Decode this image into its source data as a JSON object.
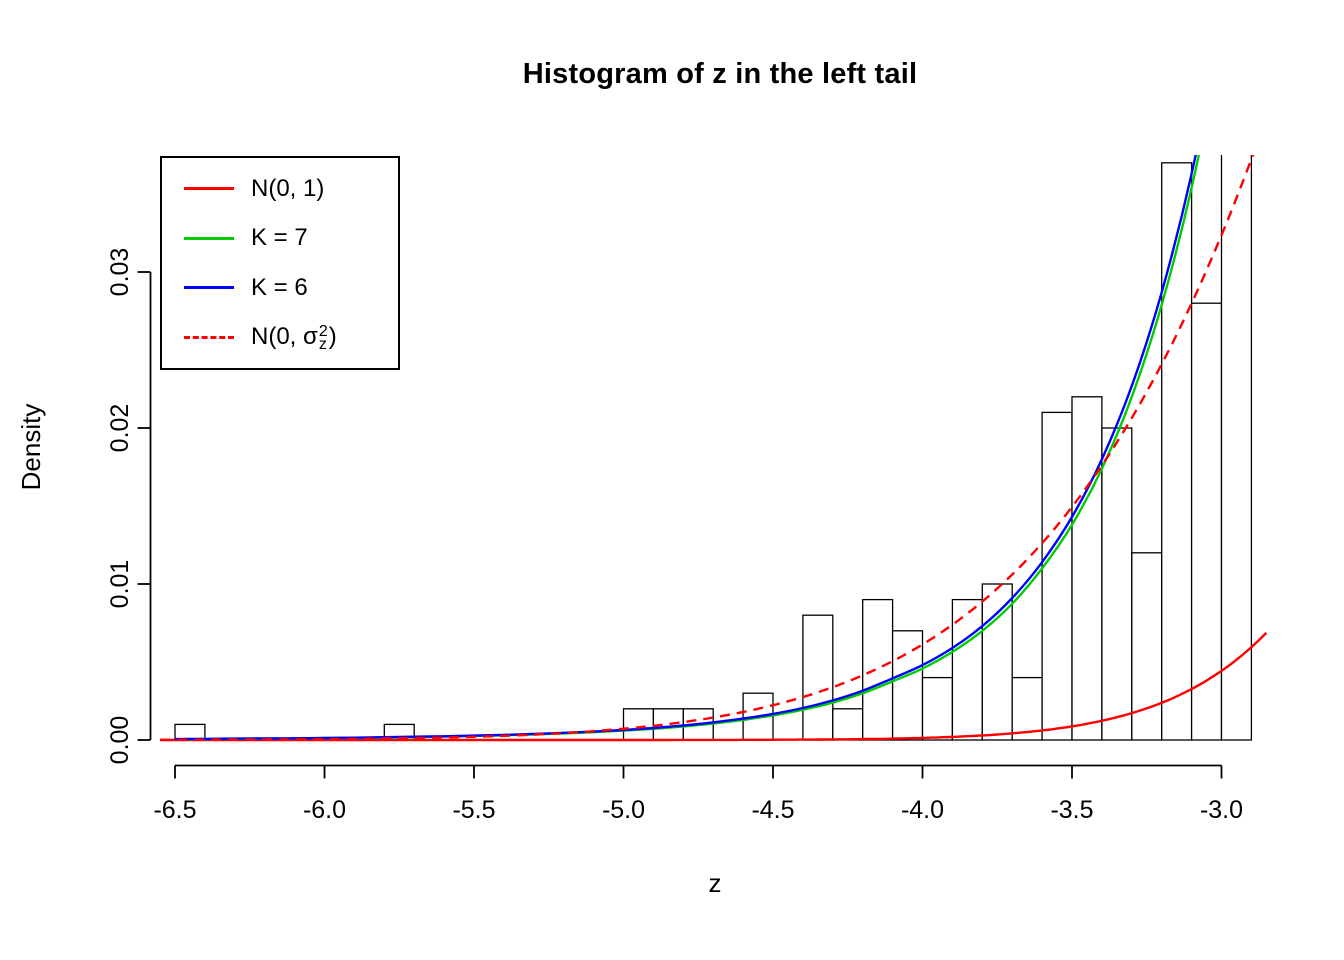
{
  "chart_data": {
    "type": "histogram",
    "title": "Histogram of z in the left tail",
    "xlabel": "z",
    "ylabel": "Density",
    "xlim": [
      -6.55,
      -2.84
    ],
    "ylim": [
      0,
      0.0375
    ],
    "grid": false,
    "x_ticks": [
      -6.5,
      -6.0,
      -5.5,
      -5.0,
      -4.5,
      -4.0,
      -3.5,
      -3.0
    ],
    "x_tick_labels": [
      "-6.5",
      "-6.0",
      "-5.5",
      "-5.0",
      "-4.5",
      "-4.0",
      "-3.5",
      "-3.0"
    ],
    "y_ticks": [
      0,
      0.01,
      0.02,
      0.03
    ],
    "y_tick_labels": [
      "0.00",
      "0.01",
      "0.02",
      "0.03"
    ],
    "colors": {
      "axis": "#000000",
      "bar_fill": "#FFFFFF",
      "bar_stroke": "#000000",
      "n01": "#FF0000",
      "k7": "#00CC00",
      "k6": "#0000FF",
      "n0_sigma": "#FF0000"
    },
    "histogram": {
      "bin_width": 0.1,
      "fill": "#FFFFFF",
      "stroke": "#000000",
      "last_bin_clipped_above_plot": true,
      "bins": [
        [
          -6.5,
          0.001
        ],
        [
          -6.4,
          0
        ],
        [
          -6.3,
          0
        ],
        [
          -6.2,
          0
        ],
        [
          -6.1,
          0
        ],
        [
          -6.0,
          0
        ],
        [
          -5.9,
          0
        ],
        [
          -5.8,
          0.001
        ],
        [
          -5.7,
          0
        ],
        [
          -5.6,
          0
        ],
        [
          -5.5,
          0
        ],
        [
          -5.4,
          0
        ],
        [
          -5.3,
          0
        ],
        [
          -5.2,
          0
        ],
        [
          -5.1,
          0
        ],
        [
          -5.0,
          0.002
        ],
        [
          -4.9,
          0.002
        ],
        [
          -4.8,
          0.002
        ],
        [
          -4.7,
          0
        ],
        [
          -4.6,
          0.003
        ],
        [
          -4.5,
          0
        ],
        [
          -4.4,
          0.008
        ],
        [
          -4.3,
          0.002
        ],
        [
          -4.2,
          0.009
        ],
        [
          -4.1,
          0.007
        ],
        [
          -4.0,
          0.004
        ],
        [
          -3.9,
          0.009
        ],
        [
          -3.8,
          0.01
        ],
        [
          -3.7,
          0.004
        ],
        [
          -3.6,
          0.021
        ],
        [
          -3.5,
          0.022
        ],
        [
          -3.4,
          0.02
        ],
        [
          -3.3,
          0.012
        ],
        [
          -3.2,
          0.037
        ],
        [
          -3.1,
          0.028
        ],
        [
          -3.0,
          0.06
        ]
      ]
    },
    "curves": [
      {
        "id": "n01",
        "name": "N(0, 1)",
        "color": "#FF0000",
        "style": "solid",
        "model": "normal",
        "mean": 0,
        "sigma": 1.0
      },
      {
        "id": "k7",
        "name": "K = 7",
        "color": "#00CC00",
        "style": "solid",
        "points": [
          [
            -6.5,
            5e-05
          ],
          [
            -6.4,
            6e-05
          ],
          [
            -6.3,
            8e-05
          ],
          [
            -6.2,
            9e-05
          ],
          [
            -6.1,
            0.0001
          ],
          [
            -6.0,
            0.00012
          ],
          [
            -5.9,
            0.00014
          ],
          [
            -5.8,
            0.00016
          ],
          [
            -5.7,
            0.00019
          ],
          [
            -5.6,
            0.00022
          ],
          [
            -5.5,
            0.00026
          ],
          [
            -5.4,
            0.0003
          ],
          [
            -5.3,
            0.00036
          ],
          [
            -5.2,
            0.00042
          ],
          [
            -5.1,
            0.0005
          ],
          [
            -5.0,
            0.0006
          ],
          [
            -4.9,
            0.00072
          ],
          [
            -4.8,
            0.00087
          ],
          [
            -4.7,
            0.00106
          ],
          [
            -4.6,
            0.00129
          ],
          [
            -4.5,
            0.00158
          ],
          [
            -4.4,
            0.00194
          ],
          [
            -4.3,
            0.0024
          ],
          [
            -4.2,
            0.003
          ],
          [
            -4.1,
            0.00376
          ],
          [
            -4.0,
            0.00458
          ],
          [
            -3.9,
            0.00565
          ],
          [
            -3.8,
            0.007
          ],
          [
            -3.7,
            0.00874
          ],
          [
            -3.6,
            0.011
          ],
          [
            -3.5,
            0.0138
          ],
          [
            -3.4,
            0.0174
          ],
          [
            -3.3,
            0.022
          ],
          [
            -3.2,
            0.0279
          ],
          [
            -3.1,
            0.0354
          ],
          [
            -3.0,
            0.0449
          ],
          [
            -2.9,
            0.0566
          ]
        ]
      },
      {
        "id": "k6",
        "name": "K = 6",
        "color": "#0000FF",
        "style": "solid",
        "points": [
          [
            -6.5,
            6e-05
          ],
          [
            -6.4,
            7e-05
          ],
          [
            -6.3,
            9e-05
          ],
          [
            -6.2,
            0.0001
          ],
          [
            -6.1,
            0.00011
          ],
          [
            -6.0,
            0.00013
          ],
          [
            -5.9,
            0.00015
          ],
          [
            -5.8,
            0.00018
          ],
          [
            -5.7,
            0.00021
          ],
          [
            -5.6,
            0.00024
          ],
          [
            -5.5,
            0.00028
          ],
          [
            -5.4,
            0.00033
          ],
          [
            -5.3,
            0.00039
          ],
          [
            -5.2,
            0.00046
          ],
          [
            -5.1,
            0.00054
          ],
          [
            -5.0,
            0.00064
          ],
          [
            -4.9,
            0.00077
          ],
          [
            -4.8,
            0.00093
          ],
          [
            -4.7,
            0.00113
          ],
          [
            -4.6,
            0.00137
          ],
          [
            -4.5,
            0.00167
          ],
          [
            -4.4,
            0.00205
          ],
          [
            -4.3,
            0.00254
          ],
          [
            -4.2,
            0.00316
          ],
          [
            -4.1,
            0.00395
          ],
          [
            -4.0,
            0.0048
          ],
          [
            -3.9,
            0.0059
          ],
          [
            -3.8,
            0.0073
          ],
          [
            -3.7,
            0.0091
          ],
          [
            -3.6,
            0.0114
          ],
          [
            -3.5,
            0.0143
          ],
          [
            -3.4,
            0.018
          ],
          [
            -3.3,
            0.0227
          ],
          [
            -3.2,
            0.0287
          ],
          [
            -3.1,
            0.0363
          ],
          [
            -3.0,
            0.046
          ],
          [
            -2.9,
            0.058
          ]
        ]
      },
      {
        "id": "n0-sigmaz2",
        "name": "N(0, σz²)",
        "color": "#FF0000",
        "style": "dashed",
        "model": "normal",
        "mean": 0,
        "sigma": 1.45
      }
    ],
    "legend": {
      "position": "top-left",
      "entries": [
        {
          "label": "N(0, 1)"
        },
        {
          "label": "K = 7"
        },
        {
          "label": "K = 6"
        },
        {
          "label": "N(0, σz²)",
          "label_parts": {
            "pre": "N(0, ",
            "sigma": "σ",
            "sup": "2",
            "sub": "z",
            "post": ")"
          }
        }
      ]
    }
  }
}
